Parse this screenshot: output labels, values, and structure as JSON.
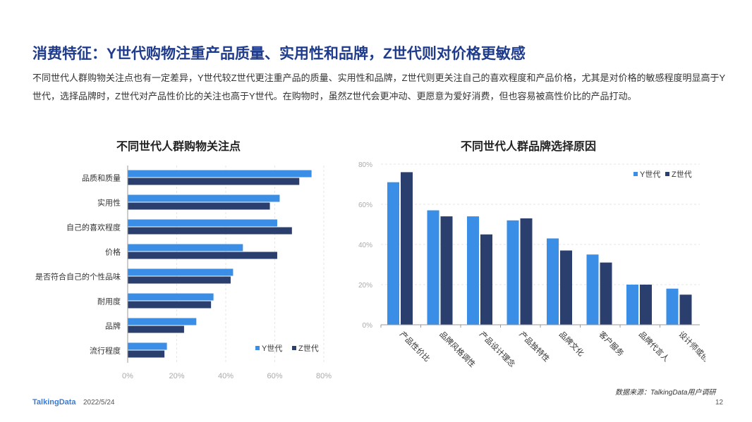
{
  "page": {
    "title": "消费特征：Y世代购物注重产品质量、实用性和品牌，Z世代则对价格更敏感",
    "description": "不同世代人群购物关注点也有一定差异，Y世代较Z世代更注重产品的质量、实用性和品牌，Z世代则更关注自己的喜欢程度和产品价格，尤其是对价格的敏感程度明显高于Y世代，选择品牌时，Z世代对产品性价比的关注也高于Y世代。在购物时，虽然Z世代会更冲动、更愿意为爱好消费，但也容易被高性价比的产品打动。",
    "source": "数据来源：TalkingData用户调研",
    "logo": "TalkingData",
    "date": "2022/5/24",
    "page_number": "12"
  },
  "colors": {
    "y": "#3a8ee6",
    "z": "#2b3f6e",
    "title": "#1f3b8c"
  },
  "chart_data": [
    {
      "type": "bar",
      "orientation": "horizontal",
      "title": "不同世代人群购物关注点",
      "categories": [
        "品质和质量",
        "实用性",
        "自己的喜欢程度",
        "价格",
        "是否符合自己的个性品味",
        "耐用度",
        "品牌",
        "流行程度"
      ],
      "series": [
        {
          "name": "Y世代",
          "values": [
            75,
            62,
            61,
            47,
            43,
            35,
            28,
            16
          ]
        },
        {
          "name": "Z世代",
          "values": [
            70,
            58,
            67,
            61,
            42,
            34,
            23,
            15
          ]
        }
      ],
      "xlim": [
        0,
        80
      ],
      "xticks": [
        "0%",
        "20%",
        "40%",
        "60%",
        "80%"
      ],
      "legend": "bottom-right",
      "grid": true
    },
    {
      "type": "bar",
      "orientation": "vertical",
      "title": "不同世代人群品牌选择原因",
      "categories": [
        "产品性价比",
        "品牌风格调性",
        "产品设计理念",
        "产品独特性",
        "品牌文化",
        "客户服务",
        "品牌代言人",
        "设计师或创始人"
      ],
      "series": [
        {
          "name": "Y世代",
          "values": [
            71,
            57,
            54,
            52,
            43,
            35,
            20,
            18
          ]
        },
        {
          "name": "Z世代",
          "values": [
            76,
            54,
            45,
            53,
            37,
            31,
            20,
            15
          ]
        }
      ],
      "ylim": [
        0,
        80
      ],
      "yticks": [
        "0%",
        "20%",
        "40%",
        "60%",
        "80%"
      ],
      "legend": "top-right",
      "grid": true
    }
  ]
}
